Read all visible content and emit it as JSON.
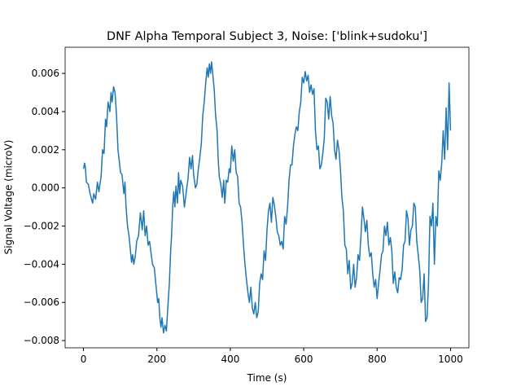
{
  "chart_data": {
    "type": "line",
    "title": "DNF Alpha Temporal Subject 3, Noise: ['blink+sudoku']",
    "x_label": "Time (s)",
    "y_label": "Signal Voltage (microV)",
    "xlim": [
      -50,
      1050
    ],
    "ylim": [
      -0.00838,
      0.00737
    ],
    "xticks": [
      0,
      200,
      400,
      600,
      800,
      1000
    ],
    "yticks": [
      {
        "value": -0.008,
        "label": "−0.008"
      },
      {
        "value": -0.006,
        "label": "−0.006"
      },
      {
        "value": -0.004,
        "label": "−0.004"
      },
      {
        "value": -0.002,
        "label": "−0.002"
      },
      {
        "value": 0,
        "label": "0.000"
      },
      0.002,
      0.004,
      0.006
    ],
    "series": [
      {
        "color": "#1f77b4",
        "x": [
          0,
          3,
          5,
          8,
          13,
          18,
          22,
          25,
          28,
          33,
          38,
          42,
          48,
          52,
          56,
          60,
          63,
          67,
          72,
          75,
          78,
          82,
          86,
          90,
          94,
          97,
          101,
          105,
          110,
          113,
          116,
          120,
          124,
          128,
          131,
          134,
          137,
          141,
          145,
          150,
          155,
          160,
          164,
          168,
          172,
          176,
          180,
          184,
          188,
          193,
          197,
          202,
          205,
          208,
          211,
          214,
          218,
          222,
          226,
          230,
          234,
          237,
          240,
          243,
          246,
          249,
          252,
          256,
          259,
          262,
          265,
          270,
          275,
          280,
          285,
          289,
          293,
          297,
          300,
          305,
          309,
          313,
          317,
          321,
          325,
          329,
          333,
          337,
          340,
          343,
          346,
          349,
          352,
          356,
          360,
          364,
          367,
          370,
          374,
          378,
          382,
          385,
          389,
          393,
          397,
          400,
          404,
          408,
          412,
          416,
          420,
          424,
          428,
          432,
          436,
          440,
          444,
          448,
          452,
          456,
          460,
          464,
          468,
          472,
          476,
          480,
          484,
          488,
          492,
          496,
          500,
          504,
          508,
          512,
          516,
          520,
          524,
          528,
          532,
          536,
          540,
          544,
          548,
          552,
          556,
          560,
          564,
          568,
          572,
          576,
          580,
          584,
          588,
          592,
          596,
          600,
          604,
          608,
          612,
          616,
          620,
          624,
          628,
          632,
          636,
          640,
          644,
          648,
          652,
          656,
          660,
          664,
          668,
          672,
          676,
          680,
          684,
          688,
          692,
          696,
          700,
          704,
          708,
          712,
          716,
          720,
          724,
          728,
          732,
          736,
          740,
          744,
          748,
          752,
          756,
          760,
          764,
          768,
          772,
          776,
          780,
          784,
          788,
          792,
          796,
          800,
          804,
          808,
          812,
          816,
          820,
          824,
          828,
          832,
          836,
          840,
          844,
          848,
          852,
          856,
          860,
          864,
          868,
          872,
          876,
          880,
          884,
          888,
          892,
          896,
          900,
          904,
          908,
          912,
          916,
          920,
          924,
          928,
          932,
          936,
          940,
          944,
          948,
          952,
          956,
          960,
          964,
          968,
          972,
          976,
          980,
          984,
          988,
          992,
          996,
          1000
        ],
        "values": [
          0.001,
          0.0013,
          0.0011,
          0.0003,
          0.0002,
          -0.0003,
          -0.0006,
          -0.0008,
          -0.0003,
          -0.0006,
          0.0003,
          -0.0002,
          0.0006,
          0.002,
          0.0018,
          0.0036,
          0.0032,
          0.0045,
          0.004,
          0.005,
          0.0045,
          0.0053,
          0.005,
          0.0038,
          0.002,
          0.0015,
          0.0008,
          0.0007,
          -0.0003,
          0.0003,
          -0.001,
          -0.002,
          -0.0025,
          -0.0033,
          -0.0039,
          -0.0035,
          -0.004,
          -0.0036,
          -0.0028,
          -0.0025,
          -0.0013,
          -0.0022,
          -0.0012,
          -0.0025,
          -0.002,
          -0.003,
          -0.0028,
          -0.0034,
          -0.004,
          -0.0042,
          -0.005,
          -0.006,
          -0.0058,
          -0.0068,
          -0.0073,
          -0.0068,
          -0.0076,
          -0.0072,
          -0.0075,
          -0.0062,
          -0.005,
          -0.0035,
          -0.0025,
          -0.001,
          -0.0002,
          -0.001,
          0.0001,
          -0.0008,
          0.0008,
          -0.0003,
          0.0004,
          0.0001,
          -0.001,
          -0.0002,
          0.0005,
          0.0016,
          0.001,
          0.0017,
          0.0007,
          0.0,
          0.0002,
          0.001,
          0.0016,
          0.0023,
          0.0038,
          0.0045,
          0.0055,
          0.0063,
          0.0058,
          0.0065,
          0.006,
          0.0066,
          0.006,
          0.0052,
          0.0038,
          0.003,
          0.0015,
          0.0006,
          0.0002,
          -0.0005,
          0.0004,
          -0.0008,
          0.0004,
          0.0003,
          0.001,
          0.0008,
          0.0022,
          0.0014,
          0.002,
          0.0008,
          0.0006,
          -0.0008,
          -0.001,
          -0.0018,
          -0.003,
          -0.004,
          -0.0048,
          -0.0055,
          -0.006,
          -0.0052,
          -0.0063,
          -0.0066,
          -0.006,
          -0.0068,
          -0.0065,
          -0.005,
          -0.0045,
          -0.0048,
          -0.0033,
          -0.0038,
          -0.0022,
          -0.0012,
          -0.0008,
          -0.0018,
          -0.0005,
          -0.0009,
          -0.0015,
          -0.0023,
          -0.0025,
          -0.003,
          -0.0028,
          -0.0032,
          -0.0015,
          -0.0019,
          -0.001,
          0.0004,
          0.0012,
          0.0012,
          0.0022,
          0.0028,
          0.0032,
          0.003,
          0.004,
          0.0045,
          0.0058,
          0.0055,
          0.0061,
          0.0056,
          0.0059,
          0.005,
          0.0054,
          0.0049,
          0.0052,
          0.003,
          0.002,
          0.0022,
          0.001,
          0.0012,
          0.0018,
          0.0026,
          0.0047,
          0.0045,
          0.0036,
          0.0048,
          0.0038,
          0.0034,
          0.002,
          0.0015,
          0.0025,
          0.002,
          0.001,
          -0.0005,
          -0.0012,
          -0.003,
          -0.0032,
          -0.0045,
          -0.0038,
          -0.0053,
          -0.005,
          -0.004,
          -0.0052,
          -0.0047,
          -0.0035,
          -0.0038,
          -0.0025,
          -0.001,
          -0.0016,
          -0.0023,
          -0.0017,
          -0.003,
          -0.0036,
          -0.0034,
          -0.0045,
          -0.0052,
          -0.0048,
          -0.0058,
          -0.005,
          -0.0043,
          -0.0035,
          -0.0033,
          -0.002,
          -0.0025,
          -0.0018,
          -0.003,
          -0.0026,
          -0.0033,
          -0.005,
          -0.0044,
          -0.0052,
          -0.0055,
          -0.0047,
          -0.0048,
          -0.0043,
          -0.003,
          -0.0028,
          -0.0012,
          -0.0016,
          -0.003,
          -0.0022,
          -0.002,
          -0.0008,
          -0.001,
          -0.0028,
          -0.0035,
          -0.0043,
          -0.006,
          -0.0058,
          -0.0045,
          -0.007,
          -0.0068,
          -0.005,
          -0.0015,
          -0.002,
          -0.0008,
          -0.004,
          -0.0015,
          -0.002,
          0.0009,
          0.0004,
          0.0013,
          0.003,
          0.0015,
          0.0042,
          0.002,
          0.0055,
          0.003
        ]
      }
    ]
  }
}
